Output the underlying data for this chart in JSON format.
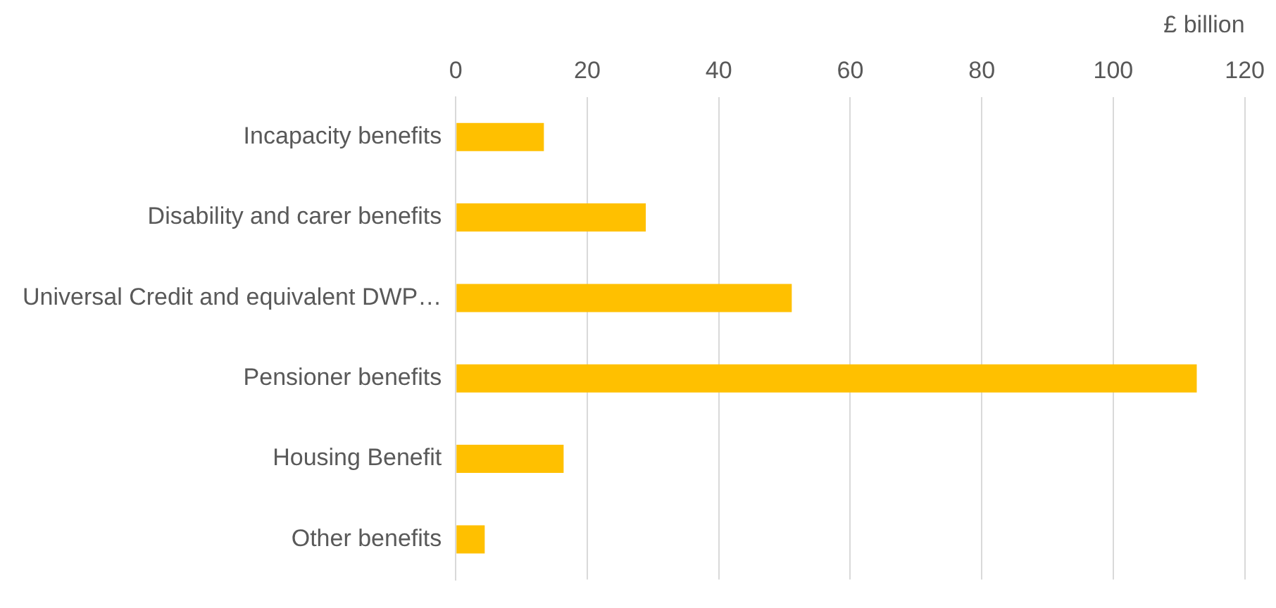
{
  "chart_data": {
    "type": "bar",
    "orientation": "horizontal",
    "xlabel": "£ billion",
    "categories": [
      "Incapacity benefits",
      "Disability and carer benefits",
      "Universal Credit and equivalent DWP…",
      "Pensioner benefits",
      "Housing Benefit",
      "Other benefits"
    ],
    "values": [
      13.4,
      28.9,
      51.1,
      112.7,
      16.4,
      4.4
    ],
    "color": "#ffc000",
    "xlim": [
      0,
      120
    ],
    "xticks": [
      0,
      20,
      40,
      60,
      80,
      100,
      120
    ],
    "grid": "x"
  }
}
